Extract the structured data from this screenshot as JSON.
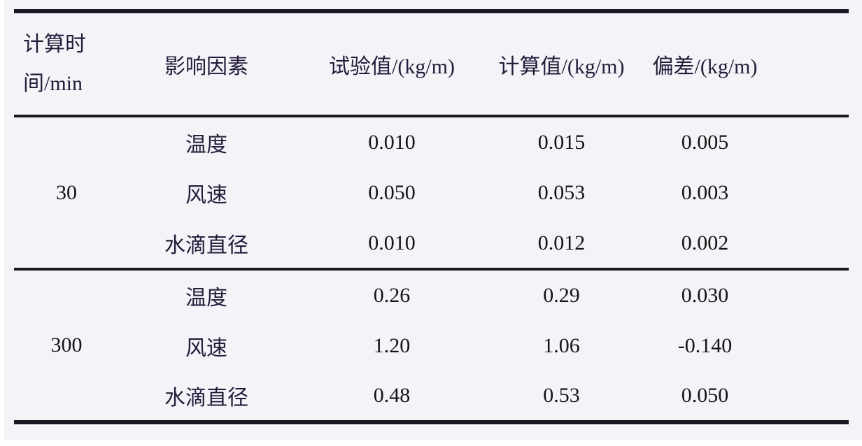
{
  "table": {
    "columns": [
      {
        "label": "计算时间/min"
      },
      {
        "label": "影响因素"
      },
      {
        "label": "试验值/(kg/m)"
      },
      {
        "label": "计算值/(kg/m)"
      },
      {
        "label": "偏差/(kg/m)"
      }
    ],
    "groups": [
      {
        "time": "30",
        "rows": [
          {
            "factor": "温度",
            "test": "0.010",
            "calc": "0.015",
            "dev": "0.005"
          },
          {
            "factor": "风速",
            "test": "0.050",
            "calc": "0.053",
            "dev": "0.003"
          },
          {
            "factor": "水滴直径",
            "test": "0.010",
            "calc": "0.012",
            "dev": "0.002"
          }
        ]
      },
      {
        "time": "300",
        "rows": [
          {
            "factor": "温度",
            "test": "0.26",
            "calc": "0.29",
            "dev": "0.030"
          },
          {
            "factor": "风速",
            "test": "1.20",
            "calc": "1.06",
            "dev": "-0.140"
          },
          {
            "factor": "水滴直径",
            "test": "0.48",
            "calc": "0.53",
            "dev": "0.050"
          }
        ]
      }
    ]
  },
  "colors": {
    "background": "#f3f4f8",
    "rule": "#1a1722",
    "chinese_text": "#251b3a",
    "number_text": "#141414"
  }
}
